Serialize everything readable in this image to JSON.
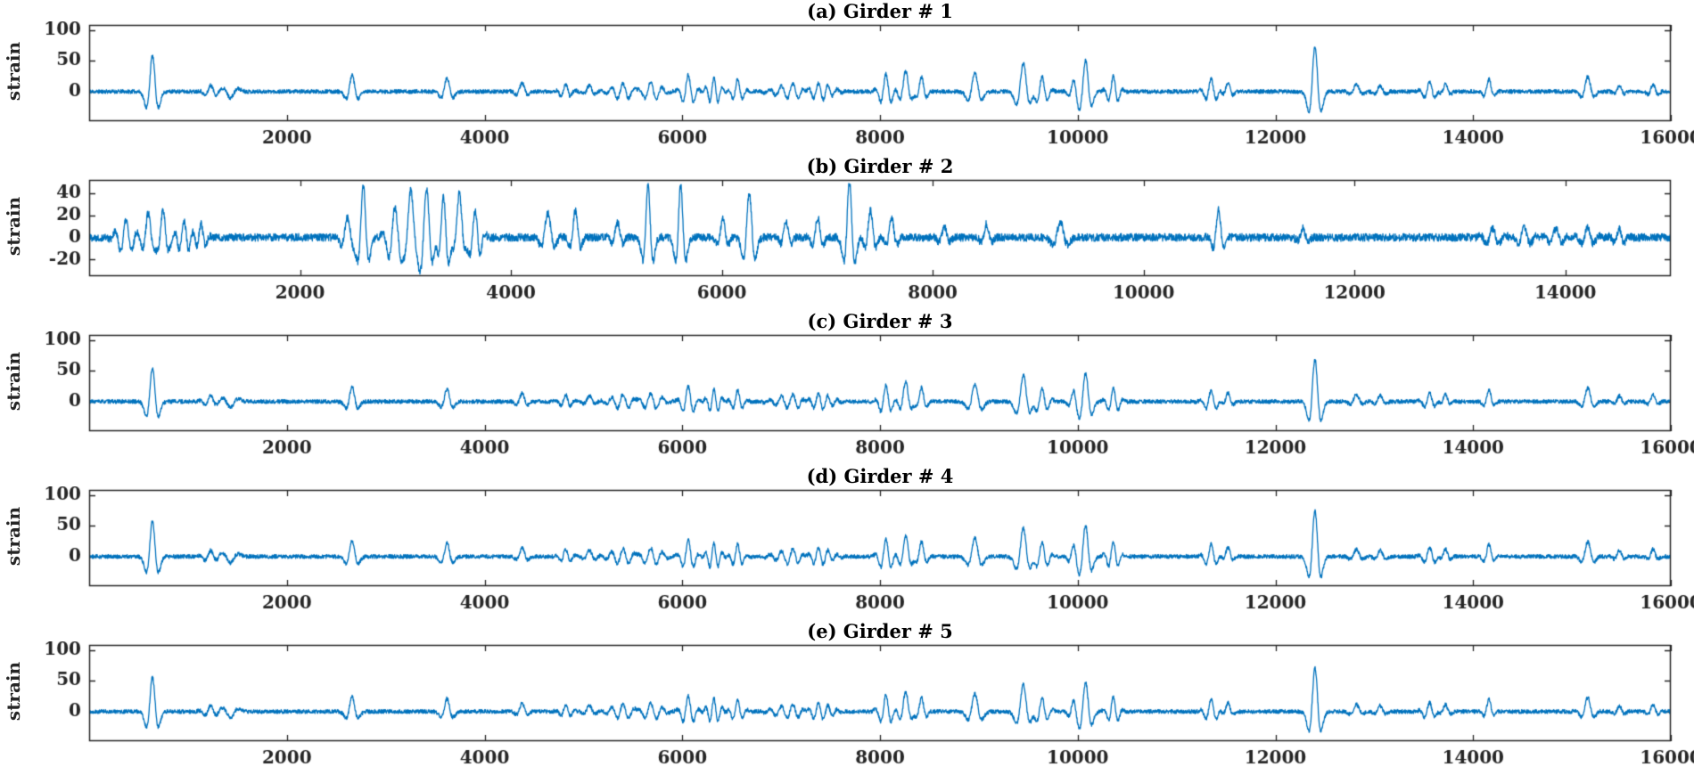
{
  "chart_data": {
    "type": "line",
    "description": "Five stacked strain time-history subplots for bridge girders 1-5",
    "colors": {
      "line": "#0072BD",
      "axis": "#262626",
      "text": "#262626",
      "background": "#ffffff"
    },
    "girders": [
      {
        "label": "(a) Girder # 1",
        "ylabel": "strain",
        "xlim": [
          0,
          16000
        ],
        "xticks": [
          2000,
          4000,
          6000,
          8000,
          10000,
          12000,
          14000,
          16000
        ],
        "ylim": [
          -48,
          108
        ],
        "yticks": [
          0,
          50,
          100
        ],
        "noise": 3.2,
        "seed": 11,
        "amp_scale": 1,
        "events": [
          [
            640,
            58,
            35,
            0
          ],
          [
            1230,
            10,
            60,
            3
          ],
          [
            1430,
            -10,
            45,
            0
          ],
          [
            2660,
            26,
            35,
            0
          ],
          [
            3620,
            22,
            35,
            0
          ],
          [
            4380,
            14,
            45,
            2
          ],
          [
            4820,
            12,
            50,
            3
          ],
          [
            5060,
            10,
            45,
            2
          ],
          [
            5400,
            13,
            110,
            6
          ],
          [
            5680,
            15,
            95,
            5
          ],
          [
            6060,
            27,
            55,
            3
          ],
          [
            6320,
            22,
            55,
            4
          ],
          [
            6560,
            20,
            50,
            3
          ],
          [
            7120,
            12,
            150,
            8
          ],
          [
            7380,
            13,
            120,
            8
          ],
          [
            8060,
            28,
            55,
            3
          ],
          [
            8260,
            34,
            45,
            2
          ],
          [
            8420,
            24,
            40,
            2
          ],
          [
            8960,
            30,
            40,
            0
          ],
          [
            9450,
            46,
            40,
            0
          ],
          [
            9640,
            24,
            55,
            3
          ],
          [
            9960,
            20,
            40,
            2
          ],
          [
            10080,
            50,
            35,
            0
          ],
          [
            10360,
            25,
            50,
            3
          ],
          [
            11350,
            20,
            55,
            3
          ],
          [
            11520,
            15,
            40,
            2
          ],
          [
            12400,
            74,
            35,
            0
          ],
          [
            12820,
            12,
            50,
            2
          ],
          [
            13060,
            10,
            45,
            2
          ],
          [
            13560,
            15,
            55,
            3
          ],
          [
            13720,
            12,
            40,
            2
          ],
          [
            14160,
            20,
            40,
            2
          ],
          [
            15160,
            24,
            50,
            2
          ],
          [
            15480,
            10,
            40,
            2
          ],
          [
            15820,
            12,
            40,
            2
          ]
        ]
      },
      {
        "label": "(b) Girder # 2",
        "ylabel": "strain",
        "xlim": [
          0,
          15000
        ],
        "xticks": [
          2000,
          4000,
          6000,
          8000,
          10000,
          12000,
          14000
        ],
        "ylim": [
          -35,
          52
        ],
        "yticks": [
          40,
          20,
          0,
          -20
        ],
        "noise": 3.5,
        "seed": 22,
        "amp_scale": 1,
        "events": [
          [
            350,
            16,
            70,
            4
          ],
          [
            560,
            22,
            40,
            2
          ],
          [
            700,
            25,
            30,
            0
          ],
          [
            900,
            15,
            60,
            4
          ],
          [
            1060,
            12,
            45,
            3
          ],
          [
            2450,
            18,
            45,
            2
          ],
          [
            2600,
            46,
            30,
            0
          ],
          [
            2900,
            28,
            60,
            3
          ],
          [
            3050,
            42,
            45,
            2
          ],
          [
            3200,
            44,
            60,
            3
          ],
          [
            3360,
            36,
            50,
            3
          ],
          [
            3510,
            40,
            45,
            2
          ],
          [
            3660,
            24,
            50,
            3
          ],
          [
            4350,
            22,
            50,
            2
          ],
          [
            4610,
            24,
            40,
            2
          ],
          [
            5010,
            14,
            40,
            2
          ],
          [
            5300,
            47,
            28,
            0
          ],
          [
            5610,
            47,
            28,
            0
          ],
          [
            6010,
            18,
            40,
            2
          ],
          [
            6260,
            40,
            32,
            0
          ],
          [
            6610,
            14,
            40,
            2
          ],
          [
            6910,
            18,
            40,
            2
          ],
          [
            7210,
            50,
            30,
            0
          ],
          [
            7410,
            24,
            40,
            2
          ],
          [
            7610,
            18,
            40,
            2
          ],
          [
            8110,
            10,
            40,
            2
          ],
          [
            8510,
            12,
            40,
            2
          ],
          [
            9210,
            14,
            40,
            0
          ],
          [
            10710,
            25,
            40,
            2
          ],
          [
            11510,
            8,
            40,
            2
          ],
          [
            13310,
            8,
            80,
            4
          ],
          [
            13610,
            9,
            60,
            3
          ],
          [
            13910,
            8,
            60,
            3
          ],
          [
            14210,
            9,
            60,
            3
          ],
          [
            14510,
            8,
            50,
            3
          ]
        ]
      },
      {
        "label": "(c) Girder # 3",
        "ylabel": "strain",
        "xlim": [
          0,
          16000
        ],
        "xticks": [
          2000,
          4000,
          6000,
          8000,
          10000,
          12000,
          14000,
          16000
        ],
        "ylim": [
          -48,
          108
        ],
        "yticks": [
          0,
          50,
          100
        ],
        "noise": 3.2,
        "seed": 33,
        "amp_scale": 0.93,
        "events": [
          [
            640,
            58,
            35,
            0
          ],
          [
            1230,
            10,
            60,
            3
          ],
          [
            1430,
            -10,
            45,
            0
          ],
          [
            2660,
            26,
            35,
            0
          ],
          [
            3620,
            22,
            35,
            0
          ],
          [
            4380,
            14,
            45,
            2
          ],
          [
            4820,
            12,
            50,
            3
          ],
          [
            5060,
            10,
            45,
            2
          ],
          [
            5400,
            13,
            110,
            6
          ],
          [
            5680,
            15,
            95,
            5
          ],
          [
            6060,
            27,
            55,
            3
          ],
          [
            6320,
            22,
            55,
            4
          ],
          [
            6560,
            20,
            50,
            3
          ],
          [
            7120,
            12,
            150,
            8
          ],
          [
            7380,
            13,
            120,
            8
          ],
          [
            8060,
            28,
            55,
            3
          ],
          [
            8260,
            34,
            45,
            2
          ],
          [
            8420,
            24,
            40,
            2
          ],
          [
            8960,
            30,
            40,
            0
          ],
          [
            9450,
            46,
            40,
            0
          ],
          [
            9640,
            24,
            55,
            3
          ],
          [
            9960,
            20,
            40,
            2
          ],
          [
            10080,
            50,
            35,
            0
          ],
          [
            10360,
            25,
            50,
            3
          ],
          [
            11350,
            20,
            55,
            3
          ],
          [
            11520,
            15,
            40,
            2
          ],
          [
            12400,
            74,
            35,
            0
          ],
          [
            12820,
            12,
            50,
            2
          ],
          [
            13060,
            10,
            45,
            2
          ],
          [
            13560,
            15,
            55,
            3
          ],
          [
            13720,
            12,
            40,
            2
          ],
          [
            14160,
            20,
            40,
            2
          ],
          [
            15160,
            24,
            50,
            2
          ],
          [
            15480,
            10,
            40,
            2
          ],
          [
            15820,
            12,
            40,
            2
          ]
        ]
      },
      {
        "label": "(d) Girder # 4",
        "ylabel": "strain",
        "xlim": [
          0,
          16000
        ],
        "xticks": [
          2000,
          4000,
          6000,
          8000,
          10000,
          12000,
          14000,
          16000
        ],
        "ylim": [
          -48,
          108
        ],
        "yticks": [
          0,
          50,
          100
        ],
        "noise": 3.2,
        "seed": 44,
        "amp_scale": 1,
        "events": [
          [
            640,
            58,
            35,
            0
          ],
          [
            1230,
            10,
            60,
            3
          ],
          [
            1430,
            -10,
            45,
            0
          ],
          [
            2660,
            26,
            35,
            0
          ],
          [
            3620,
            22,
            35,
            0
          ],
          [
            4380,
            14,
            45,
            2
          ],
          [
            4820,
            12,
            50,
            3
          ],
          [
            5060,
            10,
            45,
            2
          ],
          [
            5400,
            13,
            110,
            6
          ],
          [
            5680,
            15,
            95,
            5
          ],
          [
            6060,
            27,
            55,
            3
          ],
          [
            6320,
            22,
            55,
            4
          ],
          [
            6560,
            20,
            50,
            3
          ],
          [
            7120,
            12,
            150,
            8
          ],
          [
            7380,
            13,
            120,
            8
          ],
          [
            8060,
            28,
            55,
            3
          ],
          [
            8260,
            34,
            45,
            2
          ],
          [
            8420,
            24,
            40,
            2
          ],
          [
            8960,
            30,
            40,
            0
          ],
          [
            9450,
            46,
            40,
            0
          ],
          [
            9640,
            24,
            55,
            3
          ],
          [
            9960,
            20,
            40,
            2
          ],
          [
            10080,
            50,
            35,
            0
          ],
          [
            10360,
            25,
            50,
            3
          ],
          [
            11350,
            20,
            55,
            3
          ],
          [
            11520,
            15,
            40,
            2
          ],
          [
            12400,
            74,
            35,
            0
          ],
          [
            12820,
            12,
            50,
            2
          ],
          [
            13060,
            10,
            45,
            2
          ],
          [
            13560,
            15,
            55,
            3
          ],
          [
            13720,
            12,
            40,
            2
          ],
          [
            14160,
            20,
            40,
            2
          ],
          [
            15160,
            24,
            50,
            2
          ],
          [
            15480,
            10,
            40,
            2
          ],
          [
            15820,
            12,
            40,
            2
          ]
        ]
      },
      {
        "label": "(e) Girder # 5",
        "ylabel": "strain",
        "xlim": [
          0,
          16000
        ],
        "xticks": [
          2000,
          4000,
          6000,
          8000,
          10000,
          12000,
          14000,
          16000
        ],
        "ylim": [
          -48,
          108
        ],
        "yticks": [
          0,
          50,
          100
        ],
        "noise": 3.2,
        "seed": 55,
        "amp_scale": 0.95,
        "events": [
          [
            640,
            58,
            35,
            0
          ],
          [
            1230,
            10,
            60,
            3
          ],
          [
            1430,
            -10,
            45,
            0
          ],
          [
            2660,
            26,
            35,
            0
          ],
          [
            3620,
            22,
            35,
            0
          ],
          [
            4380,
            14,
            45,
            2
          ],
          [
            4820,
            12,
            50,
            3
          ],
          [
            5060,
            10,
            45,
            2
          ],
          [
            5400,
            13,
            110,
            6
          ],
          [
            5680,
            15,
            95,
            5
          ],
          [
            6060,
            27,
            55,
            3
          ],
          [
            6320,
            22,
            55,
            4
          ],
          [
            6560,
            20,
            50,
            3
          ],
          [
            7120,
            12,
            150,
            8
          ],
          [
            7380,
            13,
            120,
            8
          ],
          [
            8060,
            28,
            55,
            3
          ],
          [
            8260,
            34,
            45,
            2
          ],
          [
            8420,
            24,
            40,
            2
          ],
          [
            8960,
            30,
            40,
            0
          ],
          [
            9450,
            46,
            40,
            0
          ],
          [
            9640,
            24,
            55,
            3
          ],
          [
            9960,
            20,
            40,
            2
          ],
          [
            10080,
            50,
            35,
            0
          ],
          [
            10360,
            25,
            50,
            3
          ],
          [
            11350,
            20,
            55,
            3
          ],
          [
            11520,
            15,
            40,
            2
          ],
          [
            12400,
            74,
            35,
            0
          ],
          [
            12820,
            12,
            50,
            2
          ],
          [
            13060,
            10,
            45,
            2
          ],
          [
            13560,
            15,
            55,
            3
          ],
          [
            13720,
            12,
            40,
            2
          ],
          [
            14160,
            20,
            40,
            2
          ],
          [
            15160,
            24,
            50,
            2
          ],
          [
            15480,
            10,
            40,
            2
          ],
          [
            15820,
            12,
            40,
            2
          ]
        ]
      }
    ]
  }
}
